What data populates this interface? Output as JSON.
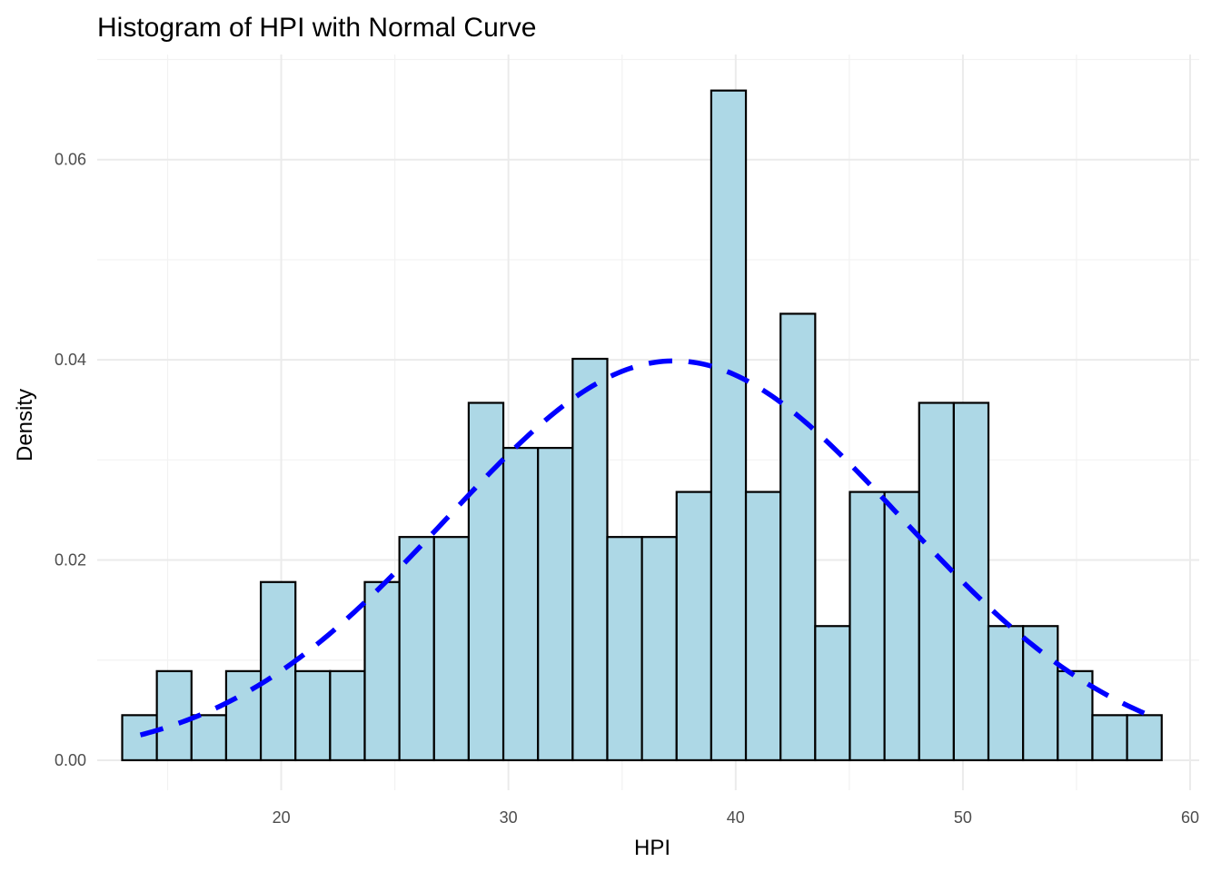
{
  "chart_data": {
    "type": "bar",
    "title": "Histogram of HPI with Normal Curve",
    "xlabel": "HPI",
    "ylabel": "Density",
    "xlim": [
      11.9,
      60.4
    ],
    "ylim": [
      -0.003,
      0.0705
    ],
    "x_ticks": [
      20,
      30,
      40,
      50,
      60
    ],
    "x_tick_labels": [
      "20",
      "30",
      "40",
      "50",
      "60"
    ],
    "y_ticks": [
      0.0,
      0.02,
      0.04,
      0.06
    ],
    "y_tick_labels": [
      "0.00",
      "0.02",
      "0.04",
      "0.06"
    ],
    "grid": true,
    "bins": {
      "start": 13.0,
      "width": 1.525,
      "values": [
        0.0045,
        0.0089,
        0.0045,
        0.0089,
        0.0178,
        0.0089,
        0.0089,
        0.0178,
        0.0223,
        0.0223,
        0.0357,
        0.0312,
        0.0312,
        0.0401,
        0.0223,
        0.0223,
        0.0268,
        0.0669,
        0.0268,
        0.0446,
        0.0134,
        0.0268,
        0.0268,
        0.0357,
        0.0357,
        0.0134,
        0.0134,
        0.0089,
        0.0045,
        0.0045
      ]
    },
    "normal_curve": {
      "mean": 37.3,
      "sd": 10.0,
      "x_range": [
        13.8,
        58.0
      ],
      "style": "dashed"
    },
    "colors": {
      "bar_fill": "#add8e6",
      "bar_outline": "#000000",
      "curve": "#0000ff"
    }
  }
}
